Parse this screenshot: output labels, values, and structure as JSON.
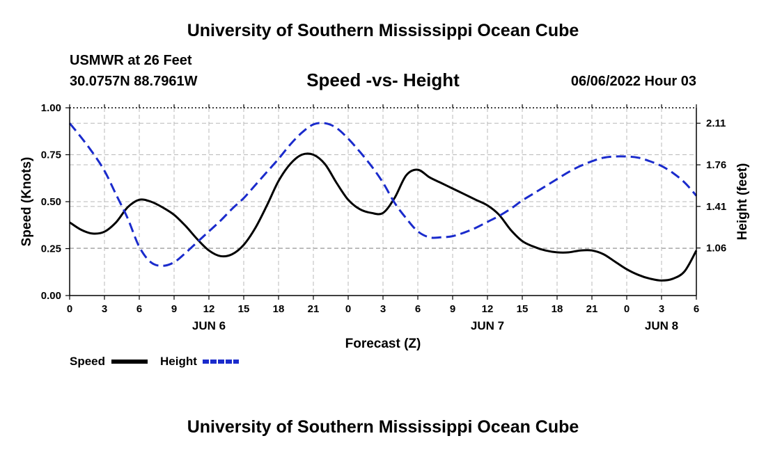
{
  "header": {
    "title": "University of Southern Mississippi Ocean Cube",
    "station": "USMWR at 26 Feet",
    "coordinates": "30.0757N  88.7961W",
    "datetime": "06/06/2022 Hour 03"
  },
  "footer": {
    "title": "University of Southern Mississippi Ocean Cube"
  },
  "chart_data": {
    "type": "line",
    "title": "Speed -vs- Height",
    "xlabel": "Forecast (Z)",
    "ylabel_left": "Speed (Knots)",
    "ylabel_right": "Height (feet)",
    "x_range": [
      0,
      54
    ],
    "x_ticks": [
      0,
      3,
      6,
      9,
      12,
      15,
      18,
      21,
      24,
      27,
      30,
      33,
      36,
      39,
      42,
      45,
      48,
      51,
      54
    ],
    "x_tick_labels": [
      "0",
      "3",
      "6",
      "9",
      "12",
      "15",
      "18",
      "21",
      "0",
      "3",
      "6",
      "9",
      "12",
      "15",
      "18",
      "21",
      "0",
      "3",
      "6"
    ],
    "day_labels": [
      {
        "label": "JUN 6",
        "x": 12
      },
      {
        "label": "JUN 7",
        "x": 36
      },
      {
        "label": "JUN 8",
        "x": 51
      }
    ],
    "ylim_left": [
      0,
      1
    ],
    "yticks_left": [
      0,
      0.25,
      0.5,
      0.75,
      1
    ],
    "ytick_labels_left": [
      "0.00",
      "0.25",
      "0.50",
      "0.75",
      "1.00"
    ],
    "ylim_right": [
      0.66,
      2.24
    ],
    "yticks_right": [
      1.06,
      1.41,
      1.76,
      2.11
    ],
    "ytick_labels_right": [
      "1.06",
      "1.41",
      "1.76",
      "2.11"
    ],
    "grid": true,
    "series": [
      {
        "name": "Speed",
        "axis": "left",
        "color": "#000000",
        "style": "solid",
        "x": [
          0,
          1,
          2,
          3,
          4,
          5,
          6,
          7,
          8,
          9,
          10,
          11,
          12,
          13,
          14,
          15,
          16,
          17,
          18,
          19,
          20,
          21,
          22,
          23,
          24,
          25,
          26,
          27,
          28,
          29,
          30,
          31,
          32,
          33,
          34,
          35,
          36,
          37,
          38,
          39,
          40,
          41,
          42,
          43,
          44,
          45,
          46,
          47,
          48,
          49,
          50,
          51,
          52,
          53,
          54
        ],
        "values": [
          0.39,
          0.35,
          0.33,
          0.34,
          0.39,
          0.47,
          0.51,
          0.5,
          0.47,
          0.43,
          0.37,
          0.3,
          0.24,
          0.21,
          0.22,
          0.27,
          0.36,
          0.48,
          0.61,
          0.7,
          0.75,
          0.75,
          0.7,
          0.6,
          0.51,
          0.46,
          0.44,
          0.44,
          0.52,
          0.64,
          0.67,
          0.63,
          0.6,
          0.57,
          0.54,
          0.51,
          0.48,
          0.43,
          0.35,
          0.29,
          0.26,
          0.24,
          0.23,
          0.23,
          0.24,
          0.24,
          0.22,
          0.18,
          0.14,
          0.11,
          0.09,
          0.08,
          0.09,
          0.13,
          0.24
        ]
      },
      {
        "name": "Height",
        "axis": "right",
        "color": "#1a2bcc",
        "style": "dashed",
        "x": [
          0,
          1,
          2,
          3,
          4,
          5,
          6,
          7,
          8,
          9,
          10,
          11,
          12,
          13,
          14,
          15,
          16,
          17,
          18,
          19,
          20,
          21,
          22,
          23,
          24,
          25,
          26,
          27,
          28,
          29,
          30,
          31,
          32,
          33,
          34,
          35,
          36,
          37,
          38,
          39,
          40,
          41,
          42,
          43,
          44,
          45,
          46,
          47,
          48,
          49,
          50,
          51,
          52,
          53,
          54
        ],
        "values": [
          2.11,
          1.99,
          1.86,
          1.71,
          1.51,
          1.31,
          1.07,
          0.94,
          0.91,
          0.94,
          1.02,
          1.11,
          1.2,
          1.29,
          1.39,
          1.48,
          1.59,
          1.7,
          1.81,
          1.93,
          2.03,
          2.1,
          2.11,
          2.07,
          1.98,
          1.87,
          1.75,
          1.61,
          1.44,
          1.31,
          1.2,
          1.15,
          1.15,
          1.16,
          1.19,
          1.23,
          1.28,
          1.33,
          1.39,
          1.46,
          1.52,
          1.58,
          1.64,
          1.7,
          1.75,
          1.79,
          1.82,
          1.83,
          1.83,
          1.82,
          1.79,
          1.75,
          1.69,
          1.61,
          1.5
        ]
      }
    ],
    "legend": [
      {
        "label": "Speed",
        "color": "#000000",
        "style": "solid"
      },
      {
        "label": "Height",
        "color": "#1a2bcc",
        "style": "dashed"
      }
    ]
  }
}
